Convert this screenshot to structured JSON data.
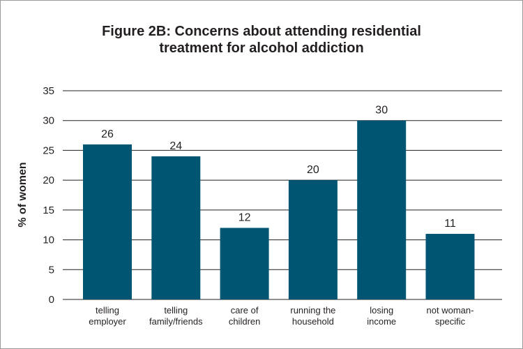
{
  "chart_data": {
    "type": "bar",
    "title_lines": [
      "Figure 2B: Concerns about attending residential",
      "treatment for alcohol addiction"
    ],
    "ylabel": "% of women",
    "xlabel": "",
    "ylim": [
      0,
      35
    ],
    "yticks": [
      0,
      5,
      10,
      15,
      20,
      25,
      30,
      35
    ],
    "grid": true,
    "categories": [
      [
        "telling",
        "employer"
      ],
      [
        "telling",
        "family/friends"
      ],
      [
        "care of",
        "children"
      ],
      [
        "running the",
        "household"
      ],
      [
        "losing",
        "income"
      ],
      [
        "not woman-",
        "specific"
      ]
    ],
    "values": [
      26,
      24,
      12,
      20,
      30,
      11
    ],
    "bar_color": "#005573",
    "grid_color": "#231f20"
  }
}
